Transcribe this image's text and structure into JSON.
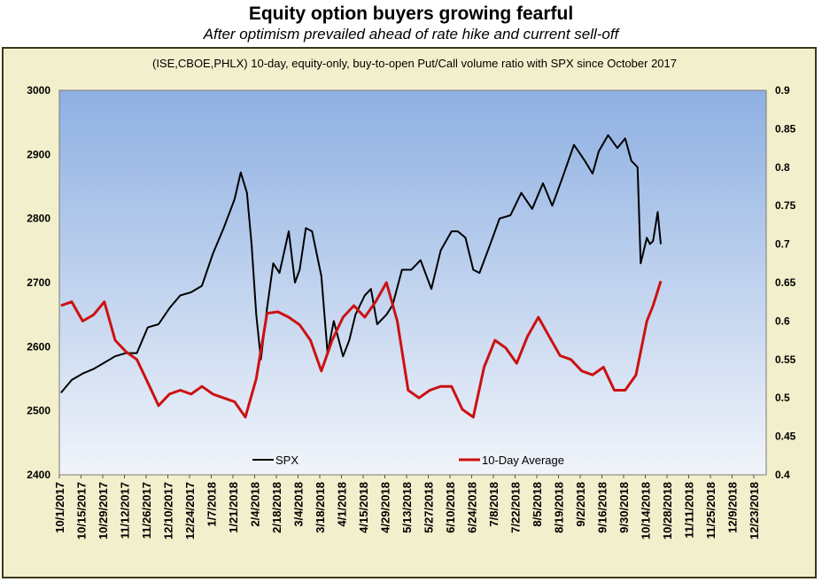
{
  "title": "Equity option buyers growing fearful",
  "subtitle": "After optimism prevailed ahead of rate hike and current sell-off",
  "colors": {
    "outer_bg": "#f2efcc",
    "frame": "#3a3a1a",
    "plot_top": "#8eb0e2",
    "plot_bottom": "#f1f4fa",
    "spx": "#000000",
    "avg": "#cc1111"
  },
  "chart_data": {
    "type": "line",
    "title": "(ISE,CBOE,PHLX) 10-day, equity-only, buy-to-open Put/Call volume ratio with SPX since October 2017",
    "x_tick_labels": [
      "10/1/2017",
      "10/15/2017",
      "10/29/2017",
      "11/12/2017",
      "11/26/2017",
      "12/10/2017",
      "12/24/2017",
      "1/7/2018",
      "1/21/2018",
      "2/4/2018",
      "2/18/2018",
      "3/4/2018",
      "3/18/2018",
      "4/1/2018",
      "4/15/2018",
      "4/29/2018",
      "5/13/2018",
      "5/27/2018",
      "6/10/2018",
      "6/24/2018",
      "7/8/2018",
      "7/22/2018",
      "8/5/2018",
      "8/19/2018",
      "9/2/2018",
      "9/16/2018",
      "9/30/2018",
      "10/14/2018",
      "10/28/2018",
      "11/11/2018",
      "11/25/2018",
      "12/9/2018",
      "12/23/2018"
    ],
    "x_range": [
      "2017-10-01",
      "2018-12-31"
    ],
    "y_left": {
      "ticks": [
        "2400",
        "2500",
        "2600",
        "2700",
        "2800",
        "2900",
        "3000"
      ],
      "range": [
        2400,
        3000
      ]
    },
    "y_right": {
      "ticks": [
        "0.4",
        "0.45",
        "0.5",
        "0.55",
        "0.6",
        "0.65",
        "0.7",
        "0.75",
        "0.8",
        "0.85",
        "0.9"
      ],
      "range": [
        0.4,
        0.9
      ]
    },
    "legend": {
      "position": "bottom"
    },
    "series": [
      {
        "name": "SPX",
        "axis": "left",
        "color": "#000000",
        "points": [
          [
            "2017-10-02",
            2528
          ],
          [
            "2017-10-09",
            2548
          ],
          [
            "2017-10-16",
            2558
          ],
          [
            "2017-10-23",
            2565
          ],
          [
            "2017-10-30",
            2575
          ],
          [
            "2017-11-06",
            2585
          ],
          [
            "2017-11-13",
            2590
          ],
          [
            "2017-11-20",
            2590
          ],
          [
            "2017-11-27",
            2630
          ],
          [
            "2017-12-04",
            2635
          ],
          [
            "2017-12-11",
            2660
          ],
          [
            "2017-12-18",
            2680
          ],
          [
            "2017-12-25",
            2685
          ],
          [
            "2018-01-01",
            2695
          ],
          [
            "2018-01-08",
            2745
          ],
          [
            "2018-01-15",
            2785
          ],
          [
            "2018-01-22",
            2830
          ],
          [
            "2018-01-26",
            2872
          ],
          [
            "2018-01-30",
            2840
          ],
          [
            "2018-02-02",
            2760
          ],
          [
            "2018-02-05",
            2650
          ],
          [
            "2018-02-08",
            2580
          ],
          [
            "2018-02-12",
            2660
          ],
          [
            "2018-02-16",
            2730
          ],
          [
            "2018-02-20",
            2715
          ],
          [
            "2018-02-26",
            2780
          ],
          [
            "2018-03-02",
            2700
          ],
          [
            "2018-03-05",
            2720
          ],
          [
            "2018-03-09",
            2785
          ],
          [
            "2018-03-13",
            2780
          ],
          [
            "2018-03-19",
            2710
          ],
          [
            "2018-03-23",
            2590
          ],
          [
            "2018-03-27",
            2640
          ],
          [
            "2018-04-02",
            2585
          ],
          [
            "2018-04-06",
            2610
          ],
          [
            "2018-04-10",
            2650
          ],
          [
            "2018-04-16",
            2680
          ],
          [
            "2018-04-20",
            2690
          ],
          [
            "2018-04-24",
            2635
          ],
          [
            "2018-04-30",
            2650
          ],
          [
            "2018-05-04",
            2665
          ],
          [
            "2018-05-10",
            2720
          ],
          [
            "2018-05-16",
            2720
          ],
          [
            "2018-05-22",
            2735
          ],
          [
            "2018-05-29",
            2690
          ],
          [
            "2018-06-04",
            2750
          ],
          [
            "2018-06-11",
            2780
          ],
          [
            "2018-06-15",
            2780
          ],
          [
            "2018-06-20",
            2770
          ],
          [
            "2018-06-25",
            2720
          ],
          [
            "2018-06-29",
            2715
          ],
          [
            "2018-07-06",
            2760
          ],
          [
            "2018-07-12",
            2800
          ],
          [
            "2018-07-19",
            2805
          ],
          [
            "2018-07-26",
            2840
          ],
          [
            "2018-08-02",
            2815
          ],
          [
            "2018-08-09",
            2855
          ],
          [
            "2018-08-15",
            2820
          ],
          [
            "2018-08-21",
            2860
          ],
          [
            "2018-08-29",
            2915
          ],
          [
            "2018-09-05",
            2890
          ],
          [
            "2018-09-10",
            2870
          ],
          [
            "2018-09-14",
            2905
          ],
          [
            "2018-09-20",
            2930
          ],
          [
            "2018-09-26",
            2910
          ],
          [
            "2018-10-01",
            2925
          ],
          [
            "2018-10-05",
            2890
          ],
          [
            "2018-10-09",
            2880
          ],
          [
            "2018-10-11",
            2730
          ],
          [
            "2018-10-15",
            2770
          ],
          [
            "2018-10-17",
            2760
          ],
          [
            "2018-10-19",
            2765
          ],
          [
            "2018-10-22",
            2810
          ],
          [
            "2018-10-24",
            2760
          ]
        ]
      },
      {
        "name": "10-Day Average",
        "axis": "right",
        "color": "#cc1111",
        "points": [
          [
            "2017-10-02",
            0.62
          ],
          [
            "2017-10-09",
            0.625
          ],
          [
            "2017-10-16",
            0.6
          ],
          [
            "2017-10-23",
            0.608
          ],
          [
            "2017-10-30",
            0.625
          ],
          [
            "2017-11-06",
            0.575
          ],
          [
            "2017-11-13",
            0.56
          ],
          [
            "2017-11-20",
            0.55
          ],
          [
            "2017-11-27",
            0.52
          ],
          [
            "2017-12-04",
            0.49
          ],
          [
            "2017-12-11",
            0.505
          ],
          [
            "2017-12-18",
            0.51
          ],
          [
            "2017-12-25",
            0.505
          ],
          [
            "2018-01-01",
            0.515
          ],
          [
            "2018-01-08",
            0.505
          ],
          [
            "2018-01-15",
            0.5
          ],
          [
            "2018-01-22",
            0.495
          ],
          [
            "2018-01-29",
            0.475
          ],
          [
            "2018-02-05",
            0.525
          ],
          [
            "2018-02-12",
            0.61
          ],
          [
            "2018-02-19",
            0.612
          ],
          [
            "2018-02-26",
            0.605
          ],
          [
            "2018-03-05",
            0.595
          ],
          [
            "2018-03-12",
            0.575
          ],
          [
            "2018-03-19",
            0.535
          ],
          [
            "2018-03-26",
            0.575
          ],
          [
            "2018-04-02",
            0.605
          ],
          [
            "2018-04-09",
            0.62
          ],
          [
            "2018-04-16",
            0.605
          ],
          [
            "2018-04-23",
            0.625
          ],
          [
            "2018-04-30",
            0.65
          ],
          [
            "2018-05-07",
            0.6
          ],
          [
            "2018-05-14",
            0.51
          ],
          [
            "2018-05-21",
            0.5
          ],
          [
            "2018-05-28",
            0.51
          ],
          [
            "2018-06-04",
            0.515
          ],
          [
            "2018-06-11",
            0.515
          ],
          [
            "2018-06-18",
            0.485
          ],
          [
            "2018-06-25",
            0.475
          ],
          [
            "2018-07-02",
            0.54
          ],
          [
            "2018-07-09",
            0.575
          ],
          [
            "2018-07-16",
            0.565
          ],
          [
            "2018-07-23",
            0.545
          ],
          [
            "2018-07-30",
            0.58
          ],
          [
            "2018-08-06",
            0.605
          ],
          [
            "2018-08-13",
            0.58
          ],
          [
            "2018-08-20",
            0.555
          ],
          [
            "2018-08-27",
            0.55
          ],
          [
            "2018-09-03",
            0.535
          ],
          [
            "2018-09-10",
            0.53
          ],
          [
            "2018-09-17",
            0.54
          ],
          [
            "2018-09-24",
            0.51
          ],
          [
            "2018-10-01",
            0.51
          ],
          [
            "2018-10-08",
            0.53
          ],
          [
            "2018-10-15",
            0.6
          ],
          [
            "2018-10-19",
            0.62
          ],
          [
            "2018-10-24",
            0.652
          ]
        ]
      }
    ]
  }
}
